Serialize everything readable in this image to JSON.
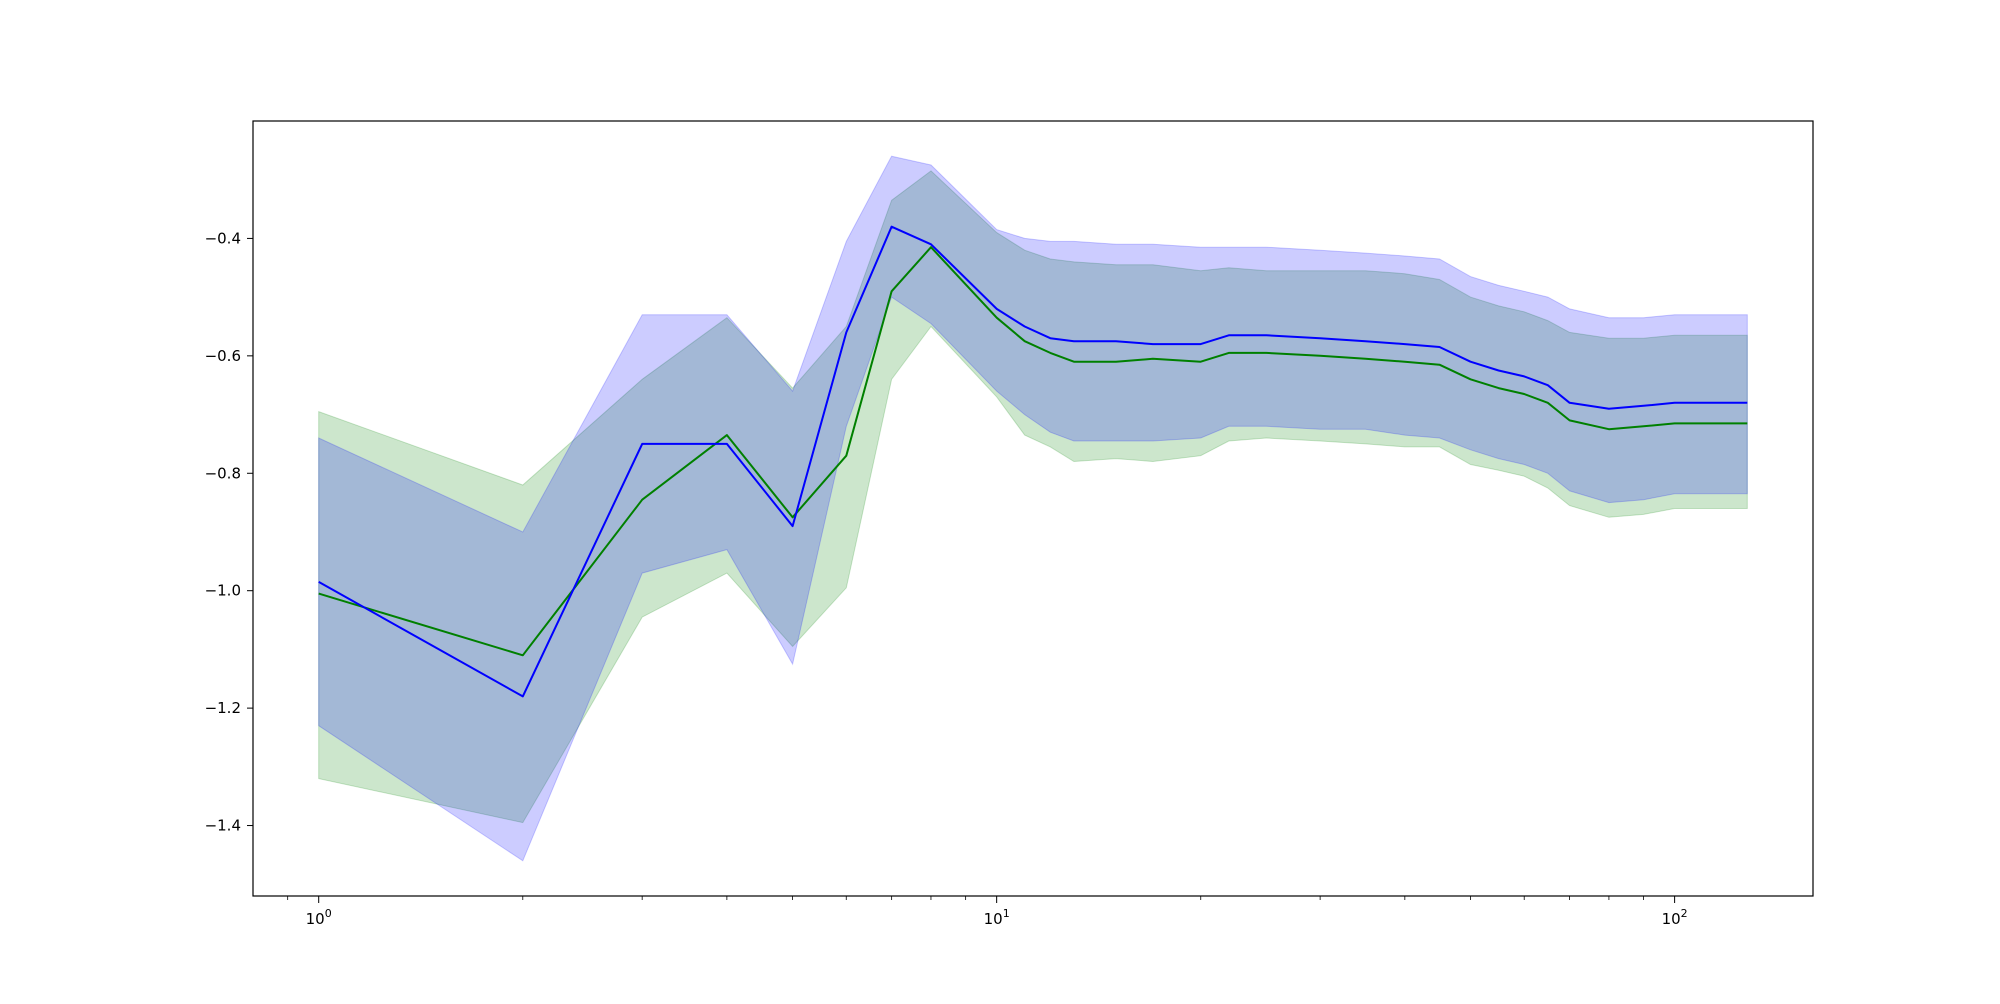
{
  "chart_data": {
    "type": "line",
    "title": "",
    "xlabel": "",
    "ylabel": "",
    "xscale": "log",
    "xlim": [
      0.8,
      160
    ],
    "ylim": [
      -1.52,
      -0.2
    ],
    "grid": false,
    "legend": "none",
    "x_ticks": [
      {
        "base": "10",
        "exp": "0",
        "value": 1
      },
      {
        "base": "10",
        "exp": "1",
        "value": 10
      },
      {
        "base": "10",
        "exp": "2",
        "value": 100
      }
    ],
    "y_ticks": [
      {
        "label": "−0.4",
        "value": -0.4
      },
      {
        "label": "−0.6",
        "value": -0.6
      },
      {
        "label": "−0.8",
        "value": -0.8
      },
      {
        "label": "−1.0",
        "value": -1.0
      },
      {
        "label": "−1.2",
        "value": -1.2
      },
      {
        "label": "−1.4",
        "value": -1.4
      }
    ],
    "series": [
      {
        "color": "#008000",
        "band_color": "#008000",
        "band_opacity": 0.2,
        "points": [
          [
            1,
            -1.005,
            -0.695,
            -1.32
          ],
          [
            2,
            -1.11,
            -0.82,
            -1.395
          ],
          [
            3,
            -0.845,
            -0.64,
            -1.045
          ],
          [
            4,
            -0.735,
            -0.535,
            -0.97
          ],
          [
            5,
            -0.875,
            -0.655,
            -1.095
          ],
          [
            6,
            -0.77,
            -0.55,
            -0.995
          ],
          [
            7,
            -0.49,
            -0.335,
            -0.64
          ],
          [
            8,
            -0.415,
            -0.285,
            -0.55
          ],
          [
            10,
            -0.535,
            -0.39,
            -0.67
          ],
          [
            11,
            -0.575,
            -0.42,
            -0.735
          ],
          [
            12,
            -0.595,
            -0.435,
            -0.755
          ],
          [
            13,
            -0.61,
            -0.44,
            -0.78
          ],
          [
            15,
            -0.61,
            -0.445,
            -0.775
          ],
          [
            17,
            -0.605,
            -0.445,
            -0.78
          ],
          [
            20,
            -0.61,
            -0.455,
            -0.77
          ],
          [
            22,
            -0.595,
            -0.45,
            -0.745
          ],
          [
            25,
            -0.595,
            -0.455,
            -0.74
          ],
          [
            30,
            -0.6,
            -0.455,
            -0.745
          ],
          [
            35,
            -0.605,
            -0.455,
            -0.75
          ],
          [
            40,
            -0.61,
            -0.46,
            -0.755
          ],
          [
            45,
            -0.615,
            -0.47,
            -0.755
          ],
          [
            50,
            -0.64,
            -0.5,
            -0.785
          ],
          [
            55,
            -0.655,
            -0.515,
            -0.795
          ],
          [
            60,
            -0.665,
            -0.525,
            -0.805
          ],
          [
            65,
            -0.68,
            -0.54,
            -0.825
          ],
          [
            70,
            -0.71,
            -0.56,
            -0.855
          ],
          [
            80,
            -0.725,
            -0.57,
            -0.875
          ],
          [
            90,
            -0.72,
            -0.57,
            -0.87
          ],
          [
            100,
            -0.715,
            -0.565,
            -0.86
          ],
          [
            110,
            -0.715,
            -0.565,
            -0.86
          ],
          [
            128,
            -0.715,
            -0.565,
            -0.86
          ]
        ]
      },
      {
        "color": "#0000ff",
        "band_color": "#0000ff",
        "band_opacity": 0.2,
        "points": [
          [
            1,
            -0.985,
            -0.74,
            -1.23
          ],
          [
            2,
            -1.18,
            -0.9,
            -1.46
          ],
          [
            3,
            -0.75,
            -0.53,
            -0.97
          ],
          [
            4,
            -0.75,
            -0.53,
            -0.93
          ],
          [
            5,
            -0.89,
            -0.66,
            -1.125
          ],
          [
            6,
            -0.56,
            -0.405,
            -0.72
          ],
          [
            7,
            -0.38,
            -0.26,
            -0.5
          ],
          [
            8,
            -0.41,
            -0.275,
            -0.545
          ],
          [
            10,
            -0.52,
            -0.385,
            -0.66
          ],
          [
            11,
            -0.55,
            -0.4,
            -0.7
          ],
          [
            12,
            -0.57,
            -0.405,
            -0.73
          ],
          [
            13,
            -0.575,
            -0.405,
            -0.745
          ],
          [
            15,
            -0.575,
            -0.41,
            -0.745
          ],
          [
            17,
            -0.58,
            -0.41,
            -0.745
          ],
          [
            20,
            -0.58,
            -0.415,
            -0.74
          ],
          [
            22,
            -0.565,
            -0.415,
            -0.72
          ],
          [
            25,
            -0.565,
            -0.415,
            -0.72
          ],
          [
            30,
            -0.57,
            -0.42,
            -0.725
          ],
          [
            35,
            -0.575,
            -0.425,
            -0.725
          ],
          [
            40,
            -0.58,
            -0.43,
            -0.735
          ],
          [
            45,
            -0.585,
            -0.435,
            -0.74
          ],
          [
            50,
            -0.61,
            -0.465,
            -0.76
          ],
          [
            55,
            -0.625,
            -0.48,
            -0.775
          ],
          [
            60,
            -0.635,
            -0.49,
            -0.785
          ],
          [
            65,
            -0.65,
            -0.5,
            -0.8
          ],
          [
            70,
            -0.68,
            -0.52,
            -0.83
          ],
          [
            80,
            -0.69,
            -0.535,
            -0.85
          ],
          [
            90,
            -0.685,
            -0.535,
            -0.845
          ],
          [
            100,
            -0.68,
            -0.53,
            -0.835
          ],
          [
            110,
            -0.68,
            -0.53,
            -0.835
          ],
          [
            128,
            -0.68,
            -0.53,
            -0.835
          ]
        ]
      }
    ]
  }
}
